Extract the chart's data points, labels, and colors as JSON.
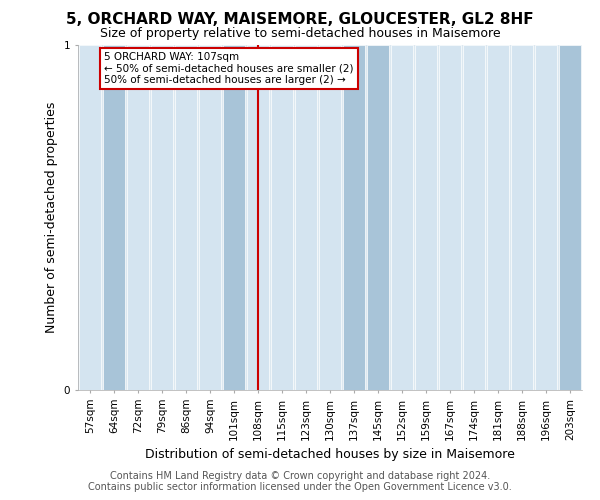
{
  "title": "5, ORCHARD WAY, MAISEMORE, GLOUCESTER, GL2 8HF",
  "subtitle": "Size of property relative to semi-detached houses in Maisemore",
  "xlabel": "Distribution of semi-detached houses by size in Maisemore",
  "ylabel": "Number of semi-detached properties",
  "footer_line1": "Contains HM Land Registry data © Crown copyright and database right 2024.",
  "footer_line2": "Contains public sector information licensed under the Open Government Licence v3.0.",
  "categories": [
    "57sqm",
    "64sqm",
    "72sqm",
    "79sqm",
    "86sqm",
    "94sqm",
    "101sqm",
    "108sqm",
    "115sqm",
    "123sqm",
    "130sqm",
    "137sqm",
    "145sqm",
    "152sqm",
    "159sqm",
    "167sqm",
    "174sqm",
    "181sqm",
    "188sqm",
    "196sqm",
    "203sqm"
  ],
  "values": [
    1,
    1,
    1,
    1,
    1,
    1,
    1,
    1,
    1,
    1,
    1,
    1,
    1,
    1,
    1,
    1,
    1,
    1,
    1,
    1,
    1
  ],
  "has_data": [
    0,
    1,
    0,
    0,
    0,
    0,
    1,
    0,
    0,
    0,
    0,
    1,
    1,
    0,
    0,
    0,
    0,
    0,
    0,
    0,
    1
  ],
  "bar_color_light": "#d4e4f0",
  "bar_color_dark": "#a8c4d8",
  "bar_edge_color": "#ffffff",
  "background_color": "#dce8f0",
  "property_line_x": "108sqm",
  "annotation_text_line1": "5 ORCHARD WAY: 107sqm",
  "annotation_text_line2": "← 50% of semi-detached houses are smaller (2)",
  "annotation_text_line3": "50% of semi-detached houses are larger (2) →",
  "annotation_box_color": "#cc0000",
  "annotation_anchor_x": "64sqm",
  "ylim": [
    0,
    1
  ],
  "yticks": [
    0,
    1
  ],
  "title_fontsize": 11,
  "subtitle_fontsize": 9,
  "xlabel_fontsize": 9,
  "ylabel_fontsize": 9,
  "tick_fontsize": 7.5,
  "footer_fontsize": 7
}
